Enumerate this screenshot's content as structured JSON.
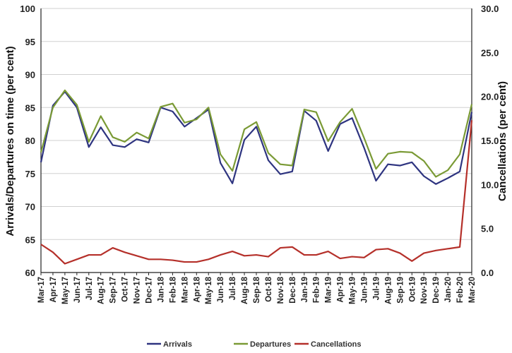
{
  "chart_data": {
    "type": "line",
    "categories": [
      "Mar-17",
      "Apr-17",
      "May-17",
      "Jun-17",
      "Jul-17",
      "Aug-17",
      "Sep-17",
      "Oct-17",
      "Nov-17",
      "Dec-17",
      "Jan-18",
      "Feb-18",
      "Mar-18",
      "Apr-18",
      "May-18",
      "Jun-18",
      "Jul-18",
      "Aug-18",
      "Sep-18",
      "Oct-18",
      "Nov-18",
      "Dec-18",
      "Jan-19",
      "Feb-19",
      "Mar-19",
      "Apr-19",
      "May-19",
      "Jun-19",
      "Jul-19",
      "Aug-19",
      "Sep-19",
      "Oct-19",
      "Nov-19",
      "Dec-19",
      "Jan-20",
      "Feb-20",
      "Mar-20"
    ],
    "ylabel": "Arrivals/Departures on time (per cent)",
    "y2label": "Cancellations (per cent)",
    "ylim": [
      60,
      100
    ],
    "y2lim": [
      0,
      30
    ],
    "yticks": [
      "60",
      "65",
      "70",
      "75",
      "80",
      "85",
      "90",
      "95",
      "100"
    ],
    "y2ticks": [
      "0.0",
      "5.0",
      "10.0",
      "15.0",
      "20.0",
      "25.0",
      "30.0"
    ],
    "legend_position": "bottom",
    "grid": "horizontal",
    "series": [
      {
        "name": "Arrivals",
        "axis": "left",
        "color": "#2e3480",
        "values": [
          76.7,
          85.3,
          87.4,
          85.0,
          79.0,
          82.0,
          79.3,
          79.0,
          80.2,
          79.7,
          85.0,
          84.4,
          82.1,
          83.4,
          84.7,
          76.6,
          73.5,
          80.1,
          82.1,
          77.0,
          74.9,
          75.3,
          84.5,
          83.0,
          78.4,
          82.5,
          83.4,
          78.9,
          73.9,
          76.4,
          76.2,
          76.7,
          74.6,
          73.4,
          74.3,
          75.3,
          84.3
        ]
      },
      {
        "name": "Departures",
        "axis": "left",
        "color": "#7a9a35",
        "values": [
          78.2,
          85.0,
          87.6,
          85.4,
          79.8,
          83.7,
          80.5,
          79.8,
          81.2,
          80.3,
          85.1,
          85.6,
          82.7,
          83.2,
          85.0,
          77.9,
          75.4,
          81.7,
          82.8,
          78.1,
          76.4,
          76.2,
          84.7,
          84.3,
          79.9,
          82.8,
          84.8,
          80.4,
          75.7,
          78.0,
          78.3,
          78.2,
          76.9,
          74.5,
          75.5,
          77.9,
          85.5
        ]
      },
      {
        "name": "Cancellations",
        "axis": "right",
        "color": "#b5302a",
        "values": [
          3.2,
          2.3,
          1.0,
          1.5,
          2.0,
          2.0,
          2.8,
          2.3,
          1.9,
          1.5,
          1.5,
          1.4,
          1.2,
          1.2,
          1.5,
          2.0,
          2.4,
          1.9,
          2.0,
          1.8,
          2.8,
          2.9,
          2.0,
          2.0,
          2.4,
          1.6,
          1.8,
          1.7,
          2.6,
          2.7,
          2.2,
          1.3,
          2.2,
          2.5,
          2.7,
          2.9,
          17.3
        ]
      }
    ]
  }
}
